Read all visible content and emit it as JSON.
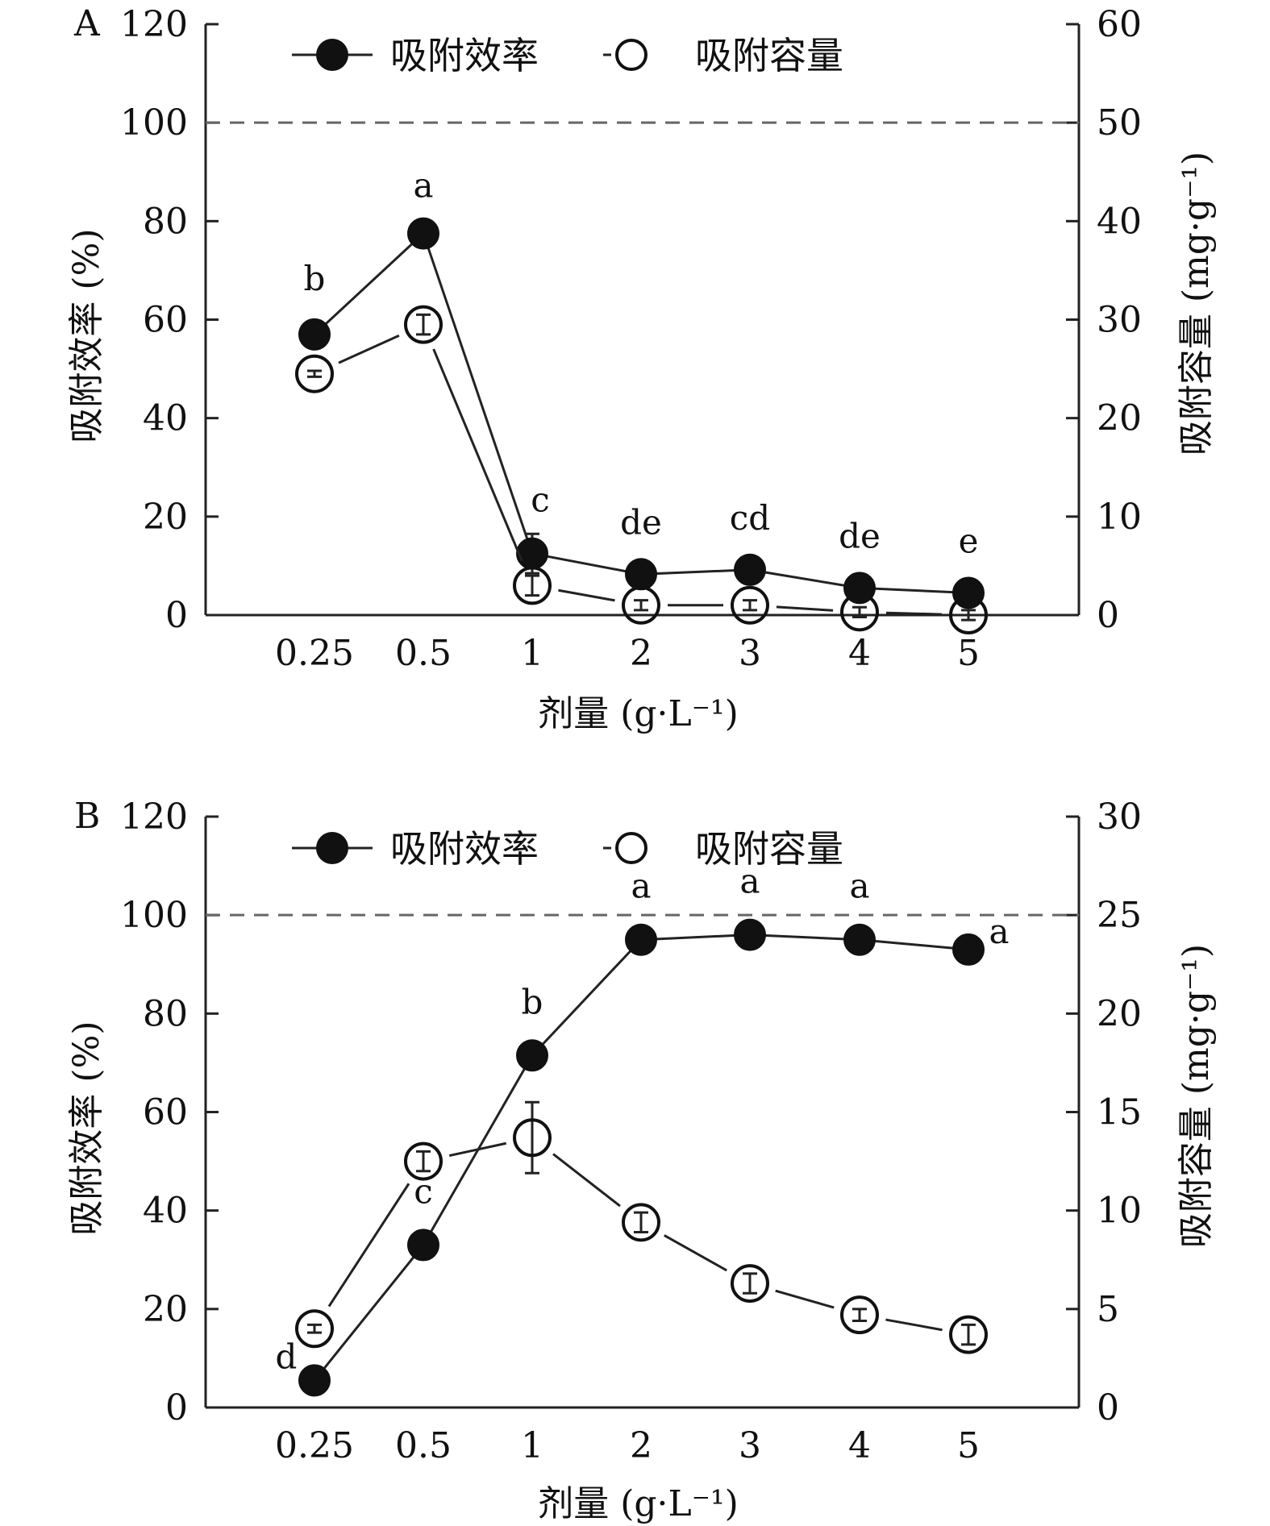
{
  "chart_data": [
    {
      "type": "line",
      "panel_letter": "A",
      "categories": [
        "0.25",
        "0.5",
        "1",
        "2",
        "3",
        "4",
        "5"
      ],
      "xlabel": "剂量 (g·L⁻¹)",
      "ylabel_left": "吸附效率 (%)",
      "ylabel_right": "吸附容量 (mg·g⁻¹)",
      "ylim_left": [
        0,
        120
      ],
      "ylim_right": [
        0,
        60
      ],
      "yticks_left": [
        "0",
        "20",
        "40",
        "60",
        "80",
        "100",
        "120"
      ],
      "yticks_right": [
        "0",
        "10",
        "20",
        "30",
        "40",
        "50",
        "60"
      ],
      "reference_line_left": 100,
      "legend_position": "top",
      "series": [
        {
          "name": "吸附效率",
          "axis": "left",
          "marker": "filled",
          "values": [
            57,
            77.5,
            12.5,
            8.3,
            9.2,
            5.5,
            4.5
          ],
          "errors": [
            0.5,
            0.5,
            4,
            0.3,
            0.3,
            0.3,
            0.3
          ],
          "significance": [
            "b",
            "a",
            "c",
            "de",
            "cd",
            "de",
            "e"
          ]
        },
        {
          "name": "吸附容量",
          "axis": "right",
          "marker": "open",
          "values": [
            24.5,
            29.5,
            3,
            1,
            1,
            0.3,
            0
          ],
          "errors": [
            0.3,
            1,
            1,
            0.5,
            0.5,
            0.5,
            0.5
          ]
        }
      ]
    },
    {
      "type": "line",
      "panel_letter": "B",
      "categories": [
        "0.25",
        "0.5",
        "1",
        "2",
        "3",
        "4",
        "5"
      ],
      "xlabel": "剂量 (g·L⁻¹)",
      "ylabel_left": "吸附效率 (%)",
      "ylabel_right": "吸附容量 (mg·g⁻¹)",
      "ylim_left": [
        0,
        120
      ],
      "ylim_right": [
        0,
        30
      ],
      "yticks_left": [
        "0",
        "20",
        "40",
        "60",
        "80",
        "100",
        "120"
      ],
      "yticks_right": [
        "0",
        "5",
        "10",
        "15",
        "20",
        "25",
        "30"
      ],
      "reference_line_left": 100,
      "legend_position": "top",
      "series": [
        {
          "name": "吸附效率",
          "axis": "left",
          "marker": "filled",
          "values": [
            5.5,
            33,
            71.5,
            95,
            96,
            95,
            93
          ],
          "errors": [
            0.3,
            0.3,
            0.3,
            0.3,
            0.3,
            0.3,
            0.3
          ],
          "significance": [
            "d",
            "c",
            "b",
            "a",
            "a",
            "a",
            "a"
          ]
        },
        {
          "name": "吸附容量",
          "axis": "right",
          "marker": "open",
          "values": [
            4,
            12.5,
            13.7,
            9.4,
            6.3,
            4.7,
            3.7
          ],
          "errors": [
            0.2,
            0.5,
            1.8,
            0.5,
            0.5,
            0.3,
            0.5
          ]
        }
      ]
    }
  ]
}
